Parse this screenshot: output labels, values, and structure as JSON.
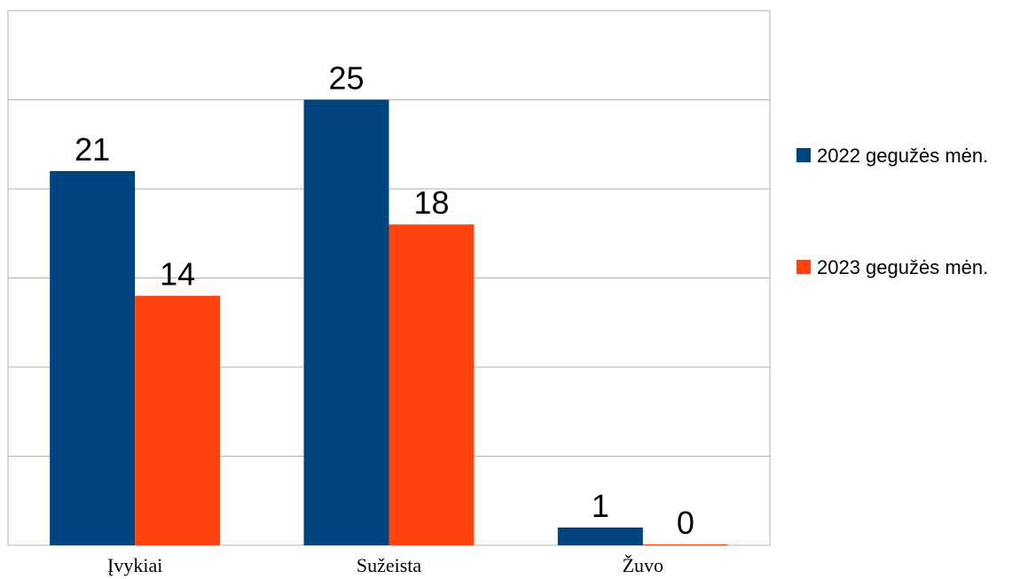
{
  "chart_data": {
    "type": "bar",
    "categories": [
      "Įvykiai",
      "Sužeista",
      "Žuvo"
    ],
    "series": [
      {
        "name": "2022 gegužės mėn.",
        "values": [
          21,
          25,
          1
        ],
        "color": "#00447f"
      },
      {
        "name": "2023 gegužės mėn.",
        "values": [
          14,
          18,
          0
        ],
        "color": "#ff420e"
      }
    ],
    "ylim": [
      0,
      30
    ],
    "grid": true,
    "legend_position": "right",
    "data_labels": true
  }
}
